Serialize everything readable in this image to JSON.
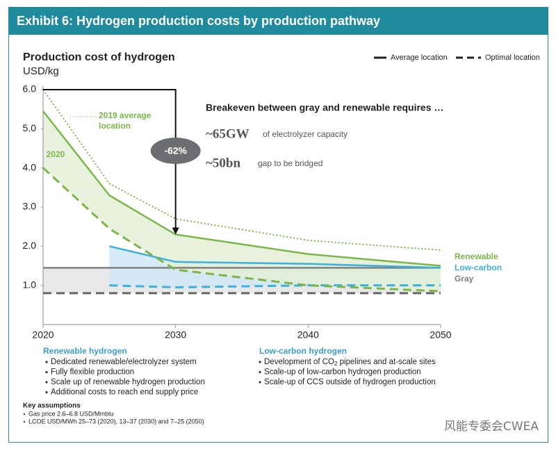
{
  "header": {
    "title": "Exhibit 6: Hydrogen production costs by production pathway"
  },
  "chart_data": {
    "type": "line",
    "title": "Production cost of hydrogen",
    "y_label": "USD/kg",
    "x": [
      2020,
      2025,
      2030,
      2040,
      2050
    ],
    "xlim": [
      2020,
      2050
    ],
    "xticks": [
      2020,
      2030,
      2040,
      2050
    ],
    "ylim": [
      0,
      6
    ],
    "yticks": [
      {
        "value": 1,
        "label": "1.0"
      },
      {
        "value": 2,
        "label": "2.0"
      },
      {
        "value": 3,
        "label": "3.0"
      },
      {
        "value": 4,
        "label": "4.0"
      },
      {
        "value": 5,
        "label": "5.0"
      },
      {
        "value": 6,
        "label": "6.0"
      }
    ],
    "legend": {
      "average": "Average location",
      "optimal": "Optimal location"
    },
    "groups": [
      {
        "name": "Renewable",
        "color": "#7ab648",
        "fill": "#e3efd5",
        "average": [
          5.45,
          3.3,
          2.3,
          1.8,
          1.5
        ],
        "optimal": [
          4.0,
          2.45,
          1.4,
          1.0,
          0.85
        ]
      },
      {
        "name": "Low-carbon",
        "color": "#3bb0e0",
        "fill": "#cfe7f5",
        "average": [
          null,
          2.0,
          1.6,
          1.55,
          1.45
        ],
        "optimal": [
          null,
          1.0,
          0.95,
          1.0,
          1.0
        ]
      },
      {
        "name": "Gray",
        "color": "#808080",
        "fill": "#e4e4e4",
        "average": [
          1.45,
          1.45,
          1.45,
          1.45,
          1.45
        ],
        "optimal": [
          0.8,
          0.8,
          0.8,
          0.8,
          0.8
        ]
      }
    ],
    "reference": {
      "label_lines": [
        "2019 average",
        "location"
      ],
      "color": "#7ab648",
      "values": [
        6.0,
        3.6,
        2.7,
        2.15,
        1.9
      ]
    },
    "annotations": {
      "year_label": "2020",
      "reduction": "-62%"
    }
  },
  "callout": {
    "headline": "Breakeven between gray and renewable requires …",
    "items": [
      {
        "figure": "~65GW",
        "text": "of electrolyzer capacity"
      },
      {
        "figure": "~50bn",
        "text": "gap to be bridged"
      }
    ]
  },
  "notes": {
    "renewable": {
      "title": "Renewable hydrogen",
      "items": [
        "Dedicated renewable/electrolyzer system",
        "Fully flexible production",
        "Scale up of renewable hydrogen production",
        "Additional costs to reach end supply price"
      ]
    },
    "low_carbon": {
      "title": "Low-carbon hydrogen",
      "co2_item": [
        "Development of CO",
        "2",
        " pipelines and at-scale sites"
      ],
      "items": [
        "Scale-up of low-carbon hydrogen production",
        "Scale-up of CCS outside of hydrogen production"
      ]
    },
    "assumptions": {
      "title": "Key assumptions",
      "items": [
        "Gas price 2.6–6.8 USD/Mmbtu",
        "LCOE USD/MWh 25–73 (2020), 13–37 (2030) and 7–25 (2050)"
      ]
    },
    "watermark": "风能专委会CWEA"
  }
}
